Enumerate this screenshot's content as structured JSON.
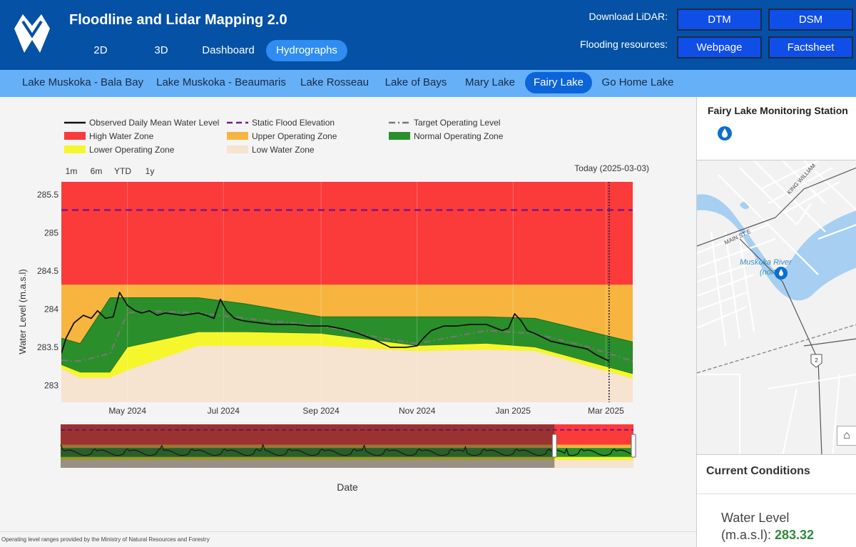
{
  "app": {
    "title": "Floodline and Lidar Mapping 2.0",
    "nav": [
      "2D",
      "3D",
      "Dashboard",
      "Hydrographs"
    ],
    "active_nav": "Hydrographs"
  },
  "resources": {
    "lidar_label": "Download LiDAR:",
    "flood_label": "Flooding resources:",
    "dtm": "DTM",
    "dsm": "DSM",
    "webpage": "Webpage",
    "factsheet": "Factsheet"
  },
  "lakes": [
    "Lake Muskoka - Bala Bay",
    "Lake Muskoka - Beaumaris",
    "Lake Rosseau",
    "Lake of Bays",
    "Mary Lake",
    "Fairy Lake",
    "Go Home Lake"
  ],
  "active_lake": "Fairy Lake",
  "range_buttons": [
    "1m",
    "6m",
    "YTD",
    "1y"
  ],
  "today_label": "Today (2025-03-03)",
  "footer_note": "Operating level ranges provided by the Ministry of Natural Resources and Forestry",
  "side": {
    "station_title": "Fairy Lake Monitoring Station",
    "map_labels": {
      "main_st": "MAIN ST E",
      "king_william": "KING WILLIAM",
      "river": "Muskoka River",
      "river_sub": "(north)",
      "highway": "2"
    },
    "current_title": "Current Conditions",
    "water_label_1": "Water Level",
    "water_label_2": "(m.a.s.l):",
    "water_value": "283.32"
  },
  "colors": {
    "high": "#fb3a3a",
    "upper": "#f7b53f",
    "normal": "#2a8f2a",
    "lower": "#f6f62c",
    "low": "#f6e3d0",
    "observed": "#111111",
    "static": "#7a1590",
    "target": "#777777"
  },
  "chart_data": {
    "type": "area",
    "xlabel": "Date",
    "ylabel": "Water Level (m.a.s.l)",
    "x_range": [
      "2024-03-20",
      "2025-03-18"
    ],
    "ylim": [
      282.78,
      285.67
    ],
    "y_ticks": [
      283,
      283.5,
      284,
      284.5,
      285,
      285.5
    ],
    "x_ticks": [
      {
        "date": "2024-05-01",
        "label": "May 2024"
      },
      {
        "date": "2024-07-01",
        "label": "Jul 2024"
      },
      {
        "date": "2024-09-01",
        "label": "Sep 2024"
      },
      {
        "date": "2024-11-01",
        "label": "Nov 2024"
      },
      {
        "date": "2025-01-01",
        "label": "Jan 2025"
      },
      {
        "date": "2025-03-01",
        "label": "Mar 2025"
      }
    ],
    "today": "2025-03-03",
    "legend": [
      {
        "label": "Observed Daily Mean Water Level",
        "kind": "line",
        "color": "#111111",
        "dash": ""
      },
      {
        "label": "Static Flood Elevation",
        "kind": "line",
        "color": "#7a1590",
        "dash": "8,5"
      },
      {
        "label": "Target Operating Level",
        "kind": "line",
        "color": "#777777",
        "dash": "9,4,2,4"
      },
      {
        "label": "High Water Zone",
        "kind": "box",
        "color": "#fb3a3a"
      },
      {
        "label": "Upper Operating Zone",
        "kind": "box",
        "color": "#f7b53f"
      },
      {
        "label": "Normal Operating Zone",
        "kind": "box",
        "color": "#2a8f2a"
      },
      {
        "label": "Lower Operating Zone",
        "kind": "box",
        "color": "#f6f62c"
      },
      {
        "label": "Low Water Zone",
        "kind": "box",
        "color": "#f6e3d0"
      }
    ],
    "static_flood_elevation": 285.3,
    "zone_top": 285.67,
    "upper_zone_top": 284.32,
    "normal_zone": {
      "x": [
        "2024-03-20",
        "2024-04-01",
        "2024-04-20",
        "2024-05-01",
        "2024-06-15",
        "2024-07-15",
        "2024-09-01",
        "2024-11-01",
        "2024-12-15",
        "2025-01-15",
        "2025-03-18"
      ],
      "upper": [
        283.62,
        283.55,
        284.15,
        284.15,
        284.15,
        284.07,
        283.9,
        283.9,
        283.9,
        283.88,
        283.57
      ],
      "lower": [
        283.27,
        283.17,
        283.17,
        283.5,
        283.7,
        283.7,
        283.68,
        283.52,
        283.55,
        283.5,
        283.15
      ]
    },
    "lower_zone_lower": {
      "x": [
        "2024-03-20",
        "2024-04-01",
        "2024-04-20",
        "2024-05-01",
        "2024-06-15",
        "2024-07-15",
        "2024-09-01",
        "2024-11-01",
        "2024-12-15",
        "2025-01-15",
        "2025-03-18"
      ],
      "values": [
        283.22,
        283.1,
        283.1,
        283.2,
        283.52,
        283.52,
        283.52,
        283.45,
        283.47,
        283.45,
        283.09
      ]
    },
    "series": [
      {
        "name": "Observed Daily Mean Water Level",
        "x": [
          "2024-03-20",
          "2024-03-23",
          "2024-03-28",
          "2024-04-03",
          "2024-04-08",
          "2024-04-12",
          "2024-04-17",
          "2024-04-22",
          "2024-04-26",
          "2024-05-01",
          "2024-05-06",
          "2024-05-10",
          "2024-05-15",
          "2024-05-20",
          "2024-05-25",
          "2024-06-05",
          "2024-06-15",
          "2024-06-20",
          "2024-06-25",
          "2024-06-29",
          "2024-07-03",
          "2024-07-08",
          "2024-07-13",
          "2024-07-20",
          "2024-08-01",
          "2024-08-15",
          "2024-08-25",
          "2024-09-05",
          "2024-09-15",
          "2024-09-25",
          "2024-10-05",
          "2024-10-15",
          "2024-10-25",
          "2024-11-01",
          "2024-11-05",
          "2024-11-10",
          "2024-11-18",
          "2024-11-26",
          "2024-12-05",
          "2024-12-15",
          "2024-12-25",
          "2024-12-29",
          "2025-01-02",
          "2025-01-06",
          "2025-01-10",
          "2025-01-15",
          "2025-01-25",
          "2025-02-05",
          "2025-02-12",
          "2025-02-17",
          "2025-02-23",
          "2025-03-03"
        ],
        "values": [
          283.42,
          283.62,
          283.82,
          283.92,
          283.88,
          283.98,
          283.88,
          283.9,
          284.22,
          284.05,
          283.98,
          283.95,
          283.98,
          283.92,
          283.95,
          283.92,
          283.95,
          283.92,
          283.88,
          284.13,
          283.98,
          283.88,
          283.85,
          283.83,
          283.8,
          283.8,
          283.78,
          283.78,
          283.74,
          283.68,
          283.6,
          283.5,
          283.5,
          283.52,
          283.62,
          283.72,
          283.78,
          283.78,
          283.8,
          283.8,
          283.72,
          283.75,
          283.94,
          283.85,
          283.72,
          283.68,
          283.58,
          283.53,
          283.5,
          283.48,
          283.4,
          283.32
        ]
      },
      {
        "name": "Target Operating Level",
        "x": [
          "2024-03-20",
          "2024-04-01",
          "2024-04-20",
          "2024-05-01",
          "2024-05-15",
          "2024-06-15",
          "2024-07-15",
          "2024-09-01",
          "2024-10-15",
          "2024-11-01",
          "2024-12-15",
          "2025-01-15",
          "2025-02-15",
          "2025-03-18"
        ],
        "values": [
          283.33,
          283.32,
          283.42,
          283.95,
          283.98,
          283.95,
          283.88,
          283.78,
          283.6,
          283.55,
          283.72,
          283.68,
          283.52,
          283.32
        ]
      }
    ],
    "navigator": {
      "x_range": [
        "2018-01-01",
        "2025-03-18"
      ],
      "window_start": "2024-03-20"
    }
  }
}
